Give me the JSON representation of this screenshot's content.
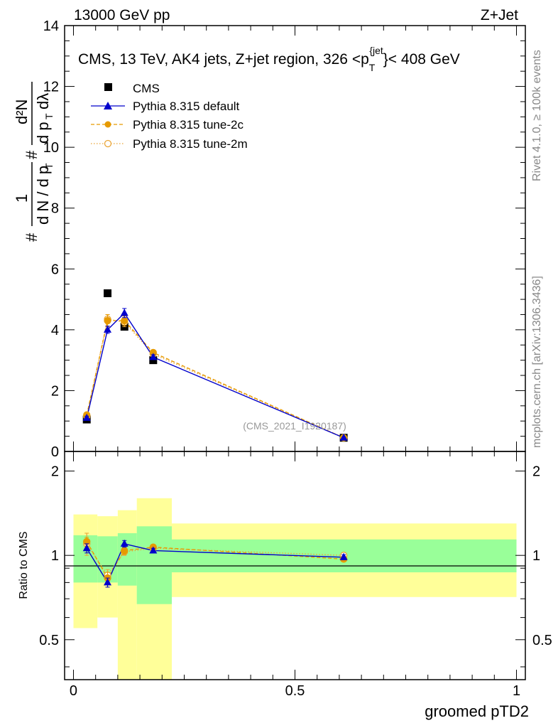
{
  "header": {
    "left": "13000 GeV pp",
    "right": "Z+Jet"
  },
  "side_labels": {
    "rivet": "Rivet 4.1.0, ≥ 100k events",
    "mcplots": "mcplots.cern.ch [arXiv:1306.3436]"
  },
  "watermark": "(CMS_2021_I1920187)",
  "chart_data": [
    {
      "type": "scatter",
      "title": "CMS, 13 TeV, AK4 jets, Z+jet region, 326 <p_T^{jet}}< 408 GeV",
      "ylabel": "1/(dN/dp_T) d²N/(dp_T dλ)",
      "xlabel": "",
      "xlim": [
        -0.02,
        1.02
      ],
      "ylim": [
        0,
        14
      ],
      "yticks": [
        0,
        2,
        4,
        6,
        8,
        10,
        12,
        14
      ],
      "legend": {
        "position": "top-left",
        "entries": [
          "CMS",
          "Pythia 8.315 default",
          "Pythia 8.315 tune-2c",
          "Pythia 8.315 tune-2m"
        ]
      },
      "colors": {
        "cms": "#000000",
        "default": "#0000cc",
        "tune2c": "#e69a00",
        "tune2m": "#eaa536"
      },
      "x": [
        0.03,
        0.077,
        0.115,
        0.18,
        0.61
      ],
      "series": [
        {
          "name": "CMS",
          "values": [
            1.05,
            5.2,
            4.1,
            3.0,
            0.45
          ]
        },
        {
          "name": "Pythia 8.315 default",
          "values": [
            1.1,
            4.0,
            4.55,
            3.1,
            0.45
          ],
          "err": [
            0.06,
            0.12,
            0.15,
            0.08,
            0.02
          ]
        },
        {
          "name": "Pythia 8.315 tune-2c",
          "values": [
            1.2,
            4.3,
            4.3,
            3.25,
            0.45
          ],
          "err": [
            0.06,
            0.2,
            0.15,
            0.08,
            0.02
          ]
        },
        {
          "name": "Pythia 8.315 tune-2m",
          "values": [
            1.15,
            4.35,
            4.25,
            3.2,
            0.45
          ],
          "err": [
            0.06,
            0.15,
            0.15,
            0.08,
            0.02
          ]
        }
      ]
    },
    {
      "type": "scatter",
      "title": "",
      "ylabel": "Ratio to CMS",
      "xlabel": "groomed pTD2",
      "xlim": [
        -0.02,
        1.02
      ],
      "ylim": [
        0.36,
        2.35
      ],
      "log_y": true,
      "yticks": [
        0.5,
        1,
        2
      ],
      "xticks": [
        0,
        0.5,
        1
      ],
      "bands": [
        {
          "x0": 0.0,
          "x1": 0.054,
          "inner": [
            0.8,
            1.18
          ],
          "outer": [
            0.55,
            1.4
          ]
        },
        {
          "x0": 0.054,
          "x1": 0.1,
          "inner": [
            0.8,
            1.17
          ],
          "outer": [
            0.6,
            1.38
          ]
        },
        {
          "x0": 0.1,
          "x1": 0.143,
          "inner": [
            0.78,
            1.2
          ],
          "outer": [
            0.36,
            1.45
          ]
        },
        {
          "x0": 0.143,
          "x1": 0.222,
          "inner": [
            0.67,
            1.27
          ],
          "outer": [
            0.36,
            1.6
          ]
        },
        {
          "x0": 0.222,
          "x1": 1.0,
          "inner": [
            0.87,
            1.14
          ],
          "outer": [
            0.71,
            1.3
          ]
        }
      ],
      "band_colors": {
        "inner": "#99ff99",
        "outer": "#ffff99"
      },
      "x": [
        0.03,
        0.077,
        0.115,
        0.18,
        0.61
      ],
      "series": [
        {
          "name": "Pythia 8.315 default",
          "values": [
            1.06,
            0.8,
            1.1,
            1.04,
            0.985
          ],
          "err": [
            0.04,
            0.03,
            0.03,
            0.02,
            0.02
          ]
        },
        {
          "name": "Pythia 8.315 tune-2c",
          "values": [
            1.12,
            0.83,
            1.04,
            1.07,
            0.97
          ],
          "err": [
            0.04,
            0.04,
            0.03,
            0.02,
            0.02
          ]
        },
        {
          "name": "Pythia 8.315 tune-2m",
          "values": [
            1.1,
            0.85,
            1.03,
            1.06,
            1.0
          ],
          "err": [
            0.1,
            0.04,
            0.03,
            0.02,
            0.02
          ]
        }
      ]
    }
  ]
}
